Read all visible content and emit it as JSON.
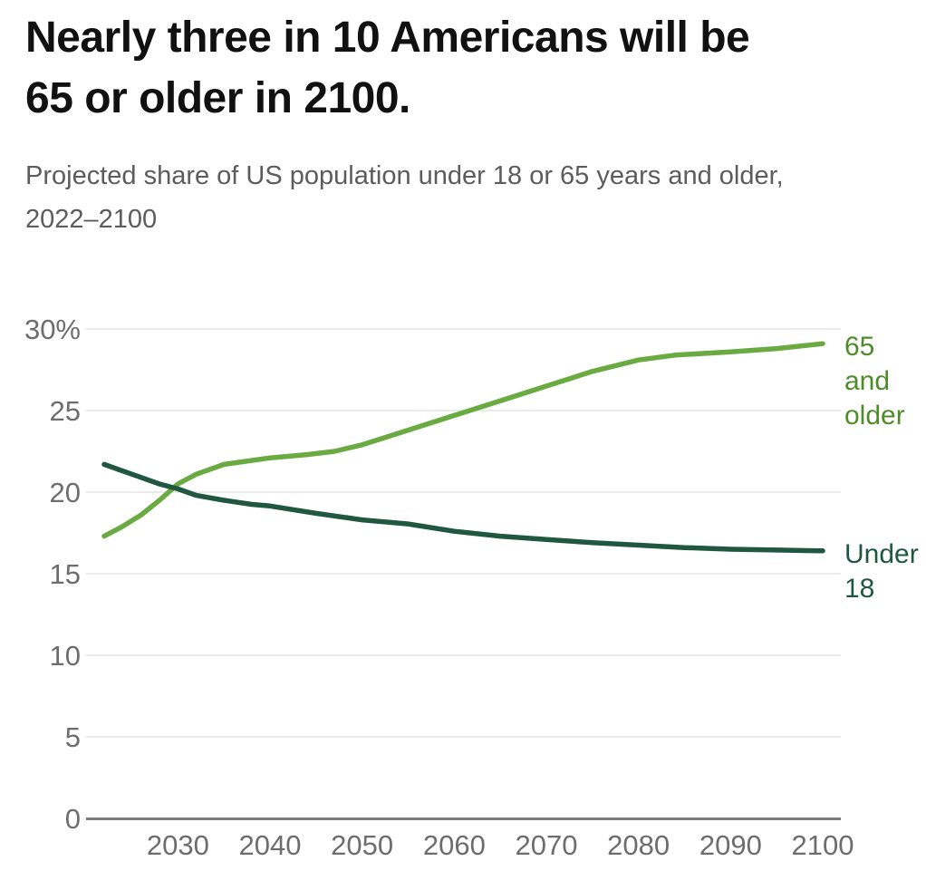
{
  "header": {
    "title_lines": [
      "Nearly three in 10 Americans will be",
      "65 or older in 2100."
    ],
    "subtitle_lines": [
      "Projected share of US population under 18 or 65 years and older,",
      "2022–2100"
    ]
  },
  "colors": {
    "title": "#111111",
    "subtitle": "#5c5c5c",
    "tick_label": "#6d6d6d",
    "gridline": "#e4e4e4",
    "axis_line": "#7c7c7c",
    "line_65_older": "#69aa41",
    "label_65_older": "#4e8c29",
    "line_under_18": "#1f5741",
    "label_under_18": "#1f5741"
  },
  "chart_data": {
    "type": "line",
    "title": "Nearly three in 10 Americans will be 65 or older in 2100.",
    "subtitle": "Projected share of US population under 18 or 65 years and older, 2022–2100",
    "xlabel": "",
    "ylabel": "",
    "grid": "horizontal",
    "legend_position": "right-of-line-ends",
    "x": {
      "range": [
        2022,
        2100
      ],
      "ticks": [
        {
          "value": 2030,
          "label": "2030"
        },
        {
          "value": 2040,
          "label": "2040"
        },
        {
          "value": 2050,
          "label": "2050"
        },
        {
          "value": 2060,
          "label": "2060"
        },
        {
          "value": 2070,
          "label": "2070"
        },
        {
          "value": 2080,
          "label": "2080"
        },
        {
          "value": 2090,
          "label": "2090"
        },
        {
          "value": 2100,
          "label": "2100"
        }
      ]
    },
    "y": {
      "range": [
        0,
        30
      ],
      "unit": "%",
      "ticks": [
        {
          "value": 30,
          "label": "30%"
        },
        {
          "value": 25,
          "label": "25"
        },
        {
          "value": 20,
          "label": "20"
        },
        {
          "value": 15,
          "label": "15"
        },
        {
          "value": 10,
          "label": "10"
        },
        {
          "value": 5,
          "label": "5"
        },
        {
          "value": 0,
          "label": "0"
        }
      ]
    },
    "series": [
      {
        "name": "65 and older",
        "label_lines": [
          "65",
          "and",
          "older"
        ],
        "color": "#69aa41",
        "label_color": "#4e8c29",
        "points": [
          [
            2022,
            17.3
          ],
          [
            2024,
            17.9
          ],
          [
            2026,
            18.6
          ],
          [
            2028,
            19.5
          ],
          [
            2030,
            20.5
          ],
          [
            2032,
            21.1
          ],
          [
            2035,
            21.7
          ],
          [
            2040,
            22.1
          ],
          [
            2044,
            22.3
          ],
          [
            2047,
            22.5
          ],
          [
            2050,
            22.9
          ],
          [
            2055,
            23.8
          ],
          [
            2060,
            24.7
          ],
          [
            2065,
            25.6
          ],
          [
            2070,
            26.5
          ],
          [
            2075,
            27.4
          ],
          [
            2080,
            28.1
          ],
          [
            2084,
            28.4
          ],
          [
            2090,
            28.6
          ],
          [
            2095,
            28.8
          ],
          [
            2100,
            29.1
          ]
        ]
      },
      {
        "name": "Under 18",
        "label_lines": [
          "Under",
          "18"
        ],
        "color": "#1f5741",
        "label_color": "#1f5741",
        "points": [
          [
            2022,
            21.7
          ],
          [
            2025,
            21.1
          ],
          [
            2028,
            20.5
          ],
          [
            2030,
            20.2
          ],
          [
            2032,
            19.8
          ],
          [
            2035,
            19.5
          ],
          [
            2038,
            19.25
          ],
          [
            2040,
            19.15
          ],
          [
            2045,
            18.7
          ],
          [
            2050,
            18.3
          ],
          [
            2055,
            18.05
          ],
          [
            2060,
            17.6
          ],
          [
            2065,
            17.3
          ],
          [
            2070,
            17.1
          ],
          [
            2075,
            16.9
          ],
          [
            2080,
            16.75
          ],
          [
            2085,
            16.6
          ],
          [
            2090,
            16.5
          ],
          [
            2095,
            16.45
          ],
          [
            2100,
            16.4
          ]
        ]
      }
    ]
  }
}
